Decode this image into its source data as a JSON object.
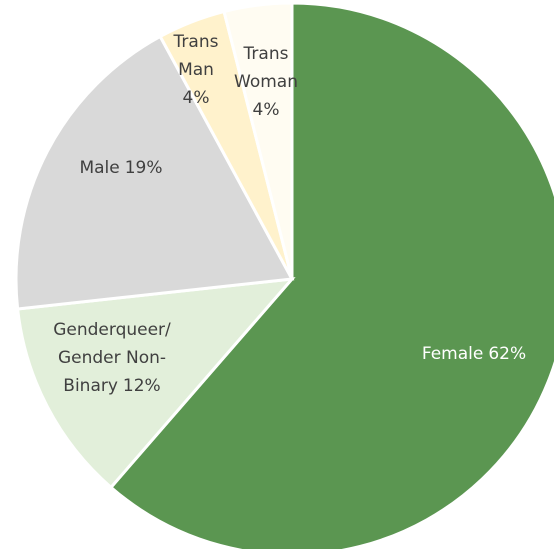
{
  "chart_data": {
    "type": "pie",
    "categories": [
      "Female",
      "Genderqueer/Gender Non-Binary",
      "Male",
      "Trans Man",
      "Trans Woman"
    ],
    "values": [
      62,
      12,
      19,
      4,
      4
    ],
    "value_labels": [
      "62%",
      "12%",
      "19%",
      "4%",
      "4%"
    ],
    "colors": [
      "#5b9651",
      "#e2efda",
      "#d9d9d9",
      "#fff2cc",
      "#fffcf2"
    ]
  }
}
